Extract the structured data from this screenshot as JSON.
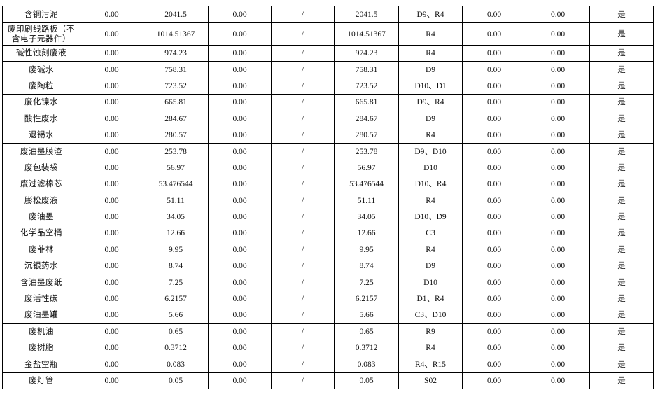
{
  "table": {
    "rows": [
      [
        "含铜污泥",
        "0.00",
        "2041.5",
        "0.00",
        "/",
        "2041.5",
        "D9、R4",
        "0.00",
        "0.00",
        "是"
      ],
      [
        "废印刷线路板（不含电子元器件）",
        "0.00",
        "1014.51367",
        "0.00",
        "/",
        "1014.51367",
        "R4",
        "0.00",
        "0.00",
        "是"
      ],
      [
        "碱性蚀刻废液",
        "0.00",
        "974.23",
        "0.00",
        "/",
        "974.23",
        "R4",
        "0.00",
        "0.00",
        "是"
      ],
      [
        "废碱水",
        "0.00",
        "758.31",
        "0.00",
        "/",
        "758.31",
        "D9",
        "0.00",
        "0.00",
        "是"
      ],
      [
        "废陶粒",
        "0.00",
        "723.52",
        "0.00",
        "/",
        "723.52",
        "D10、D1",
        "0.00",
        "0.00",
        "是"
      ],
      [
        "废化镍水",
        "0.00",
        "665.81",
        "0.00",
        "/",
        "665.81",
        "D9、R4",
        "0.00",
        "0.00",
        "是"
      ],
      [
        "酸性废水",
        "0.00",
        "284.67",
        "0.00",
        "/",
        "284.67",
        "D9",
        "0.00",
        "0.00",
        "是"
      ],
      [
        "退锡水",
        "0.00",
        "280.57",
        "0.00",
        "/",
        "280.57",
        "R4",
        "0.00",
        "0.00",
        "是"
      ],
      [
        "废油墨膜渣",
        "0.00",
        "253.78",
        "0.00",
        "/",
        "253.78",
        "D9、D10",
        "0.00",
        "0.00",
        "是"
      ],
      [
        "废包装袋",
        "0.00",
        "56.97",
        "0.00",
        "/",
        "56.97",
        "D10",
        "0.00",
        "0.00",
        "是"
      ],
      [
        "废过滤棉芯",
        "0.00",
        "53.476544",
        "0.00",
        "/",
        "53.476544",
        "D10、R4",
        "0.00",
        "0.00",
        "是"
      ],
      [
        "膨松废液",
        "0.00",
        "51.11",
        "0.00",
        "/",
        "51.11",
        "R4",
        "0.00",
        "0.00",
        "是"
      ],
      [
        "废油墨",
        "0.00",
        "34.05",
        "0.00",
        "/",
        "34.05",
        "D10、D9",
        "0.00",
        "0.00",
        "是"
      ],
      [
        "化学品空桶",
        "0.00",
        "12.66",
        "0.00",
        "/",
        "12.66",
        "C3",
        "0.00",
        "0.00",
        "是"
      ],
      [
        "废菲林",
        "0.00",
        "9.95",
        "0.00",
        "/",
        "9.95",
        "R4",
        "0.00",
        "0.00",
        "是"
      ],
      [
        "沉银药水",
        "0.00",
        "8.74",
        "0.00",
        "/",
        "8.74",
        "D9",
        "0.00",
        "0.00",
        "是"
      ],
      [
        "含油墨废纸",
        "0.00",
        "7.25",
        "0.00",
        "/",
        "7.25",
        "D10",
        "0.00",
        "0.00",
        "是"
      ],
      [
        "废活性碳",
        "0.00",
        "6.2157",
        "0.00",
        "/",
        "6.2157",
        "D1、R4",
        "0.00",
        "0.00",
        "是"
      ],
      [
        "废油墨罐",
        "0.00",
        "5.66",
        "0.00",
        "/",
        "5.66",
        "C3、D10",
        "0.00",
        "0.00",
        "是"
      ],
      [
        "废机油",
        "0.00",
        "0.65",
        "0.00",
        "/",
        "0.65",
        "R9",
        "0.00",
        "0.00",
        "是"
      ],
      [
        "废树脂",
        "0.00",
        "0.3712",
        "0.00",
        "/",
        "0.3712",
        "R4",
        "0.00",
        "0.00",
        "是"
      ],
      [
        "金盐空瓶",
        "0.00",
        "0.083",
        "0.00",
        "/",
        "0.083",
        "R4、R15",
        "0.00",
        "0.00",
        "是"
      ],
      [
        "废灯管",
        "0.00",
        "0.05",
        "0.00",
        "/",
        "0.05",
        "S02",
        "0.00",
        "0.00",
        "是"
      ]
    ]
  }
}
